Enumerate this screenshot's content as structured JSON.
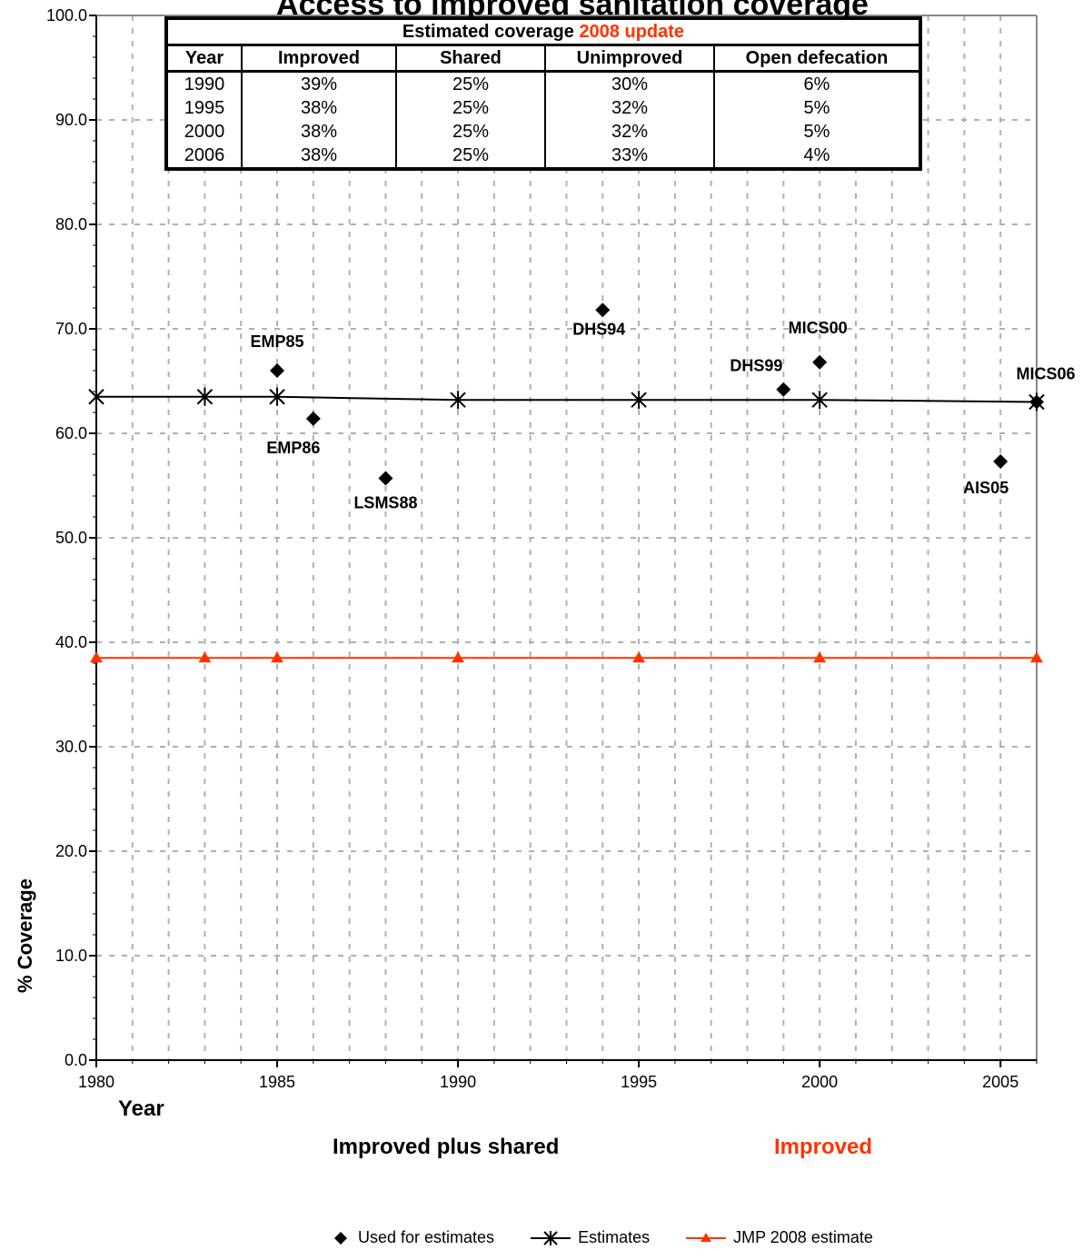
{
  "chart_data": {
    "type": "line",
    "title": "Access to improved sanitation coverage",
    "ylabel": "% Coverage",
    "xlabel": "Year",
    "xlim": [
      1980,
      2006
    ],
    "ylim": [
      0,
      100
    ],
    "x_ticks": [
      1980,
      1985,
      1990,
      1995,
      2000,
      2005
    ],
    "y_ticks": [
      "0.0",
      "10.0",
      "20.0",
      "30.0",
      "40.0",
      "50.0",
      "60.0",
      "70.0",
      "80.0",
      "90.0",
      "100.0"
    ],
    "grid": true,
    "subtitles": {
      "left": "Improved plus shared",
      "right": "Improved"
    },
    "colors": {
      "black": "#000000",
      "red": "#ff3300",
      "grid": "#b0b0b0"
    },
    "series": [
      {
        "name": "Used for estimates",
        "marker": "diamond",
        "points": [
          {
            "x": 1985,
            "y": 66.0,
            "label": "EMP85"
          },
          {
            "x": 1986,
            "y": 61.4,
            "label": "EMP86"
          },
          {
            "x": 1988,
            "y": 55.7,
            "label": "LSMS88"
          },
          {
            "x": 1994,
            "y": 71.8,
            "label": "DHS94"
          },
          {
            "x": 1999,
            "y": 64.2,
            "label": "DHS99"
          },
          {
            "x": 2000,
            "y": 66.8,
            "label": "MICS00"
          },
          {
            "x": 2005,
            "y": 57.3,
            "label": "AIS05"
          },
          {
            "x": 2006,
            "y": 63.0,
            "label": "MICS06"
          }
        ]
      },
      {
        "name": "Estimates",
        "marker": "asterisk",
        "x": [
          1980,
          1983,
          1985,
          1990,
          1995,
          2000,
          2006
        ],
        "y": [
          63.5,
          63.5,
          63.5,
          63.2,
          63.2,
          63.2,
          63.0
        ]
      },
      {
        "name": "JMP 2008 estimate",
        "marker": "triangle",
        "x": [
          1980,
          1983,
          1985,
          1990,
          1995,
          2000,
          2006
        ],
        "y": [
          38.5,
          38.5,
          38.5,
          38.5,
          38.5,
          38.5,
          38.5
        ]
      }
    ]
  },
  "table": {
    "caption_prefix": "Estimated coverage ",
    "caption_highlight": "2008 update",
    "headers": [
      "Year",
      "Improved",
      "Shared",
      "Unimproved",
      "Open defecation"
    ],
    "rows": [
      [
        "1990",
        "39%",
        "25%",
        "30%",
        "6%"
      ],
      [
        "1995",
        "38%",
        "25%",
        "32%",
        "5%"
      ],
      [
        "2000",
        "38%",
        "25%",
        "32%",
        "5%"
      ],
      [
        "2006",
        "38%",
        "25%",
        "33%",
        "4%"
      ]
    ]
  }
}
